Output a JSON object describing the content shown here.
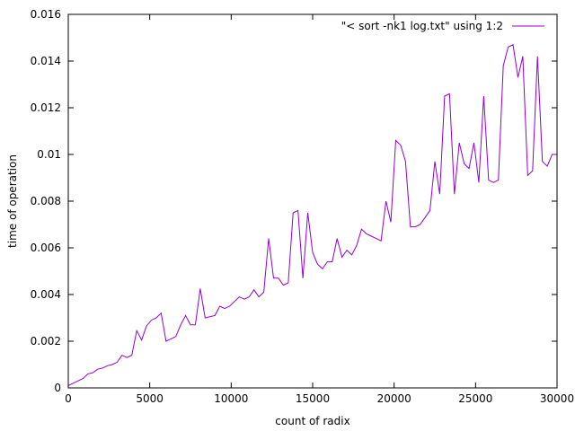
{
  "chart_data": {
    "type": "line",
    "title": "",
    "xlabel": "count of radix",
    "ylabel": "time of operation",
    "xlim": [
      0,
      30000
    ],
    "ylim": [
      0,
      0.016
    ],
    "xticks": [
      0,
      5000,
      10000,
      15000,
      20000,
      25000,
      30000
    ],
    "xtick_labels": [
      "0",
      "5000",
      "10000",
      "15000",
      "20000",
      "25000",
      "30000"
    ],
    "yticks": [
      0,
      0.002,
      0.004,
      0.006,
      0.008,
      0.01,
      0.012,
      0.014,
      0.016
    ],
    "ytick_labels": [
      "0",
      "0.002",
      "0.004",
      "0.006",
      "0.008",
      "0.01",
      "0.012",
      "0.014",
      "0.016"
    ],
    "grid": false,
    "legend_position": "top-right",
    "series": [
      {
        "name": "\"< sort -nk1 log.txt\" using 1:2",
        "color": "#9400d3",
        "x": [
          0,
          300,
          600,
          900,
          1200,
          1500,
          1800,
          2100,
          2400,
          2700,
          3000,
          3300,
          3600,
          3900,
          4200,
          4500,
          4800,
          5100,
          5400,
          5700,
          6000,
          6300,
          6600,
          6900,
          7200,
          7500,
          7800,
          8100,
          8400,
          8700,
          9000,
          9300,
          9600,
          9900,
          10200,
          10500,
          10800,
          11100,
          11400,
          11700,
          12000,
          12300,
          12600,
          12900,
          13200,
          13500,
          13800,
          14100,
          14400,
          14700,
          15000,
          15300,
          15600,
          15900,
          16200,
          16500,
          16800,
          17100,
          17400,
          17700,
          18000,
          18300,
          18600,
          18900,
          19200,
          19500,
          19800,
          20100,
          20400,
          20700,
          21000,
          21300,
          21600,
          21900,
          22200,
          22500,
          22800,
          23100,
          23400,
          23700,
          24000,
          24300,
          24600,
          24900,
          25200,
          25500,
          25800,
          26100,
          26400,
          26700,
          27000,
          27300,
          27600,
          27900,
          28200,
          28500,
          28800,
          29100,
          29400,
          29700,
          30000
        ],
        "values": [
          0.0001,
          0.0002,
          0.0003,
          0.0004,
          0.0006,
          0.00065,
          0.0008,
          0.00085,
          0.00095,
          0.001,
          0.0011,
          0.0014,
          0.0013,
          0.0014,
          0.00245,
          0.00205,
          0.00265,
          0.0029,
          0.003,
          0.0032,
          0.002,
          0.0021,
          0.0022,
          0.0027,
          0.0031,
          0.0027,
          0.0027,
          0.00425,
          0.003,
          0.00305,
          0.0031,
          0.0035,
          0.0034,
          0.0035,
          0.0037,
          0.0039,
          0.0038,
          0.0039,
          0.0042,
          0.0039,
          0.0041,
          0.0064,
          0.0047,
          0.0047,
          0.0044,
          0.0045,
          0.0075,
          0.0076,
          0.0047,
          0.0075,
          0.0058,
          0.0053,
          0.0051,
          0.0054,
          0.0054,
          0.0064,
          0.0056,
          0.0059,
          0.0057,
          0.0061,
          0.0068,
          0.0066,
          0.0065,
          0.0064,
          0.0063,
          0.008,
          0.0071,
          0.0106,
          0.0104,
          0.0097,
          0.0069,
          0.0069,
          0.007,
          0.0073,
          0.0076,
          0.0097,
          0.0083,
          0.0125,
          0.0126,
          0.0083,
          0.0105,
          0.0096,
          0.0094,
          0.0105,
          0.0088,
          0.0125,
          0.0089,
          0.0088,
          0.0089,
          0.0138,
          0.0146,
          0.0147,
          0.0133,
          0.0142,
          0.0091,
          0.0093,
          0.0142,
          0.0097,
          0.0095,
          0.01,
          0.01
        ]
      }
    ]
  }
}
